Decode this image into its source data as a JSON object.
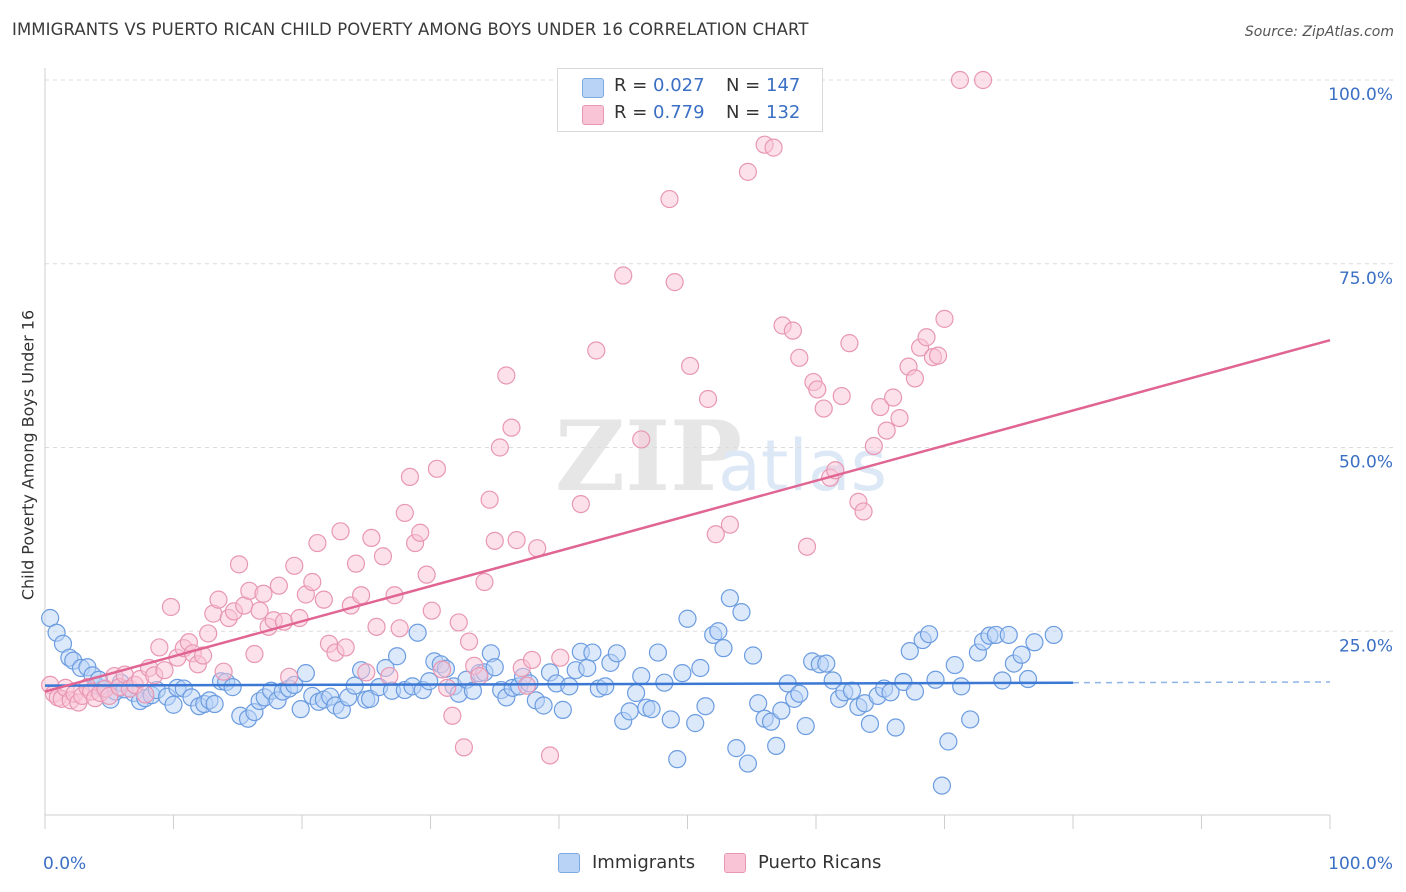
{
  "title": "IMMIGRANTS VS PUERTO RICAN CHILD POVERTY AMONG BOYS UNDER 16 CORRELATION CHART",
  "source": "Source: ZipAtlas.com",
  "watermark": {
    "zip": "ZIP",
    "atlas": "atlas"
  },
  "colors": {
    "blue": "#3a78d4",
    "blue_fill": "#b9d3f7",
    "pink": "#e06592",
    "pink_fill": "#f9c4d6",
    "tick_text": "#3a6fc4"
  },
  "stats": [
    {
      "r_label": "R = ",
      "r_value": "0.027",
      "n_label": "N = ",
      "n_value": "147"
    },
    {
      "r_label": "R = ",
      "r_value": "0.779",
      "n_label": "N = ",
      "n_value": "132"
    }
  ],
  "legend": [
    {
      "label": "Immigrants"
    },
    {
      "label": "Puerto Ricans"
    }
  ],
  "chart_data": {
    "type": "scatter",
    "ylabel": "Child Poverty Among Boys Under 16",
    "xlabel": "",
    "xlim": [
      0,
      100
    ],
    "ylim": [
      0,
      100
    ],
    "x_tick_labels": [
      "0.0%",
      "100.0%"
    ],
    "y_tick_labels": [
      "25.0%",
      "50.0%",
      "75.0%",
      "100.0%"
    ],
    "y_ticks": [
      25,
      50,
      75,
      100
    ],
    "grid": true,
    "legend_position": "bottom-center",
    "series": [
      {
        "name": "Immigrants",
        "trend": {
          "x": [
            0,
            80
          ],
          "y": [
            17.6,
            18.0
          ],
          "dashed_to": [
            100,
            18.1
          ]
        },
        "points": [
          [
            0.4,
            26.8
          ],
          [
            0.9,
            24.8
          ],
          [
            1.4,
            23.3
          ],
          [
            1.9,
            21.4
          ],
          [
            2.2,
            21.0
          ],
          [
            2.8,
            20.0
          ],
          [
            3.3,
            20.1
          ],
          [
            3.7,
            19.0
          ],
          [
            4.0,
            17.6
          ],
          [
            4.2,
            18.4
          ],
          [
            4.6,
            17.1
          ],
          [
            5.1,
            15.7
          ],
          [
            5.5,
            16.8
          ],
          [
            5.9,
            18.0
          ],
          [
            6.2,
            17.1
          ],
          [
            6.9,
            16.6
          ],
          [
            7.4,
            15.5
          ],
          [
            7.8,
            15.9
          ],
          [
            8.3,
            16.3
          ],
          [
            8.7,
            17.0
          ],
          [
            9.5,
            16.1
          ],
          [
            10.0,
            15.0
          ],
          [
            10.3,
            17.3
          ],
          [
            10.8,
            17.2
          ],
          [
            11.4,
            16.0
          ],
          [
            12.0,
            14.8
          ],
          [
            12.4,
            15.1
          ],
          [
            12.8,
            15.6
          ],
          [
            13.2,
            15.1
          ],
          [
            13.7,
            18.2
          ],
          [
            14.1,
            18.1
          ],
          [
            14.6,
            17.4
          ],
          [
            15.2,
            13.5
          ],
          [
            15.8,
            13.1
          ],
          [
            16.3,
            14.0
          ],
          [
            16.7,
            15.5
          ],
          [
            17.1,
            16.0
          ],
          [
            17.6,
            16.9
          ],
          [
            18.1,
            15.6
          ],
          [
            18.5,
            16.8
          ],
          [
            19.0,
            17.2
          ],
          [
            19.4,
            17.7
          ],
          [
            19.9,
            14.4
          ],
          [
            20.3,
            19.3
          ],
          [
            20.8,
            16.2
          ],
          [
            21.3,
            15.4
          ],
          [
            21.7,
            15.7
          ],
          [
            22.2,
            16.1
          ],
          [
            22.6,
            14.9
          ],
          [
            23.1,
            14.3
          ],
          [
            23.6,
            16.0
          ],
          [
            24.1,
            17.6
          ],
          [
            24.6,
            19.7
          ],
          [
            25.0,
            15.7
          ],
          [
            25.3,
            15.8
          ],
          [
            26.0,
            17.4
          ],
          [
            26.5,
            20.0
          ],
          [
            27.0,
            16.9
          ],
          [
            27.4,
            21.6
          ],
          [
            28.0,
            17.0
          ],
          [
            28.6,
            17.5
          ],
          [
            29.0,
            24.8
          ],
          [
            29.4,
            17.0
          ],
          [
            29.9,
            18.2
          ],
          [
            30.3,
            20.9
          ],
          [
            30.8,
            20.5
          ],
          [
            31.2,
            19.9
          ],
          [
            31.8,
            17.5
          ],
          [
            32.2,
            16.5
          ],
          [
            32.8,
            18.4
          ],
          [
            33.3,
            16.9
          ],
          [
            33.8,
            19.3
          ],
          [
            34.2,
            19.4
          ],
          [
            34.7,
            22.0
          ],
          [
            35.0,
            20.1
          ],
          [
            35.5,
            17.0
          ],
          [
            35.9,
            16.0
          ],
          [
            36.4,
            17.3
          ],
          [
            36.9,
            17.5
          ],
          [
            37.2,
            18.8
          ],
          [
            37.7,
            17.9
          ],
          [
            38.2,
            15.6
          ],
          [
            38.8,
            14.9
          ],
          [
            39.3,
            19.4
          ],
          [
            39.8,
            17.9
          ],
          [
            40.3,
            14.3
          ],
          [
            40.8,
            17.5
          ],
          [
            41.3,
            19.7
          ],
          [
            41.7,
            22.2
          ],
          [
            42.2,
            20.0
          ],
          [
            42.6,
            22.1
          ],
          [
            43.1,
            17.2
          ],
          [
            43.6,
            17.5
          ],
          [
            44.0,
            20.7
          ],
          [
            44.5,
            22.0
          ],
          [
            45.0,
            12.8
          ],
          [
            45.5,
            14.1
          ],
          [
            46.0,
            16.6
          ],
          [
            46.4,
            18.9
          ],
          [
            46.8,
            14.6
          ],
          [
            47.2,
            14.4
          ],
          [
            47.7,
            22.1
          ],
          [
            48.2,
            18.0
          ],
          [
            48.7,
            13.0
          ],
          [
            49.2,
            7.6
          ],
          [
            49.6,
            19.3
          ],
          [
            50.0,
            26.7
          ],
          [
            50.6,
            12.5
          ],
          [
            51.0,
            20.0
          ],
          [
            51.4,
            14.8
          ],
          [
            52.0,
            24.5
          ],
          [
            52.4,
            25.0
          ],
          [
            52.8,
            22.7
          ],
          [
            53.3,
            29.5
          ],
          [
            53.8,
            9.1
          ],
          [
            54.2,
            27.6
          ],
          [
            54.7,
            7.0
          ],
          [
            55.1,
            21.7
          ],
          [
            55.5,
            15.2
          ],
          [
            56.0,
            13.1
          ],
          [
            56.5,
            12.7
          ],
          [
            56.9,
            9.4
          ],
          [
            57.3,
            14.2
          ],
          [
            57.8,
            17.9
          ],
          [
            58.3,
            15.8
          ],
          [
            58.7,
            16.5
          ],
          [
            59.2,
            12.1
          ],
          [
            59.7,
            20.9
          ],
          [
            60.3,
            20.5
          ],
          [
            60.8,
            20.6
          ],
          [
            61.3,
            18.3
          ],
          [
            61.8,
            15.8
          ],
          [
            62.2,
            16.7
          ],
          [
            62.8,
            16.9
          ],
          [
            63.3,
            14.7
          ],
          [
            63.8,
            15.2
          ],
          [
            64.2,
            12.4
          ],
          [
            64.8,
            16.2
          ],
          [
            65.3,
            17.2
          ],
          [
            65.8,
            16.7
          ],
          [
            66.2,
            11.9
          ],
          [
            66.8,
            18.1
          ],
          [
            67.3,
            22.3
          ],
          [
            67.7,
            16.8
          ],
          [
            68.3,
            23.8
          ],
          [
            68.8,
            24.6
          ],
          [
            69.3,
            18.4
          ],
          [
            69.8,
            4.0
          ],
          [
            70.3,
            10.0
          ],
          [
            70.8,
            20.4
          ],
          [
            71.3,
            17.5
          ],
          [
            72.0,
            13.0
          ],
          [
            72.6,
            22.1
          ],
          [
            73.0,
            23.6
          ],
          [
            73.5,
            24.4
          ],
          [
            74.0,
            24.5
          ],
          [
            74.5,
            18.3
          ],
          [
            75.0,
            24.5
          ],
          [
            75.4,
            20.6
          ],
          [
            76.0,
            21.8
          ],
          [
            76.5,
            18.5
          ],
          [
            77.0,
            23.5
          ],
          [
            78.5,
            24.5
          ]
        ]
      },
      {
        "name": "Puerto Ricans",
        "trend": {
          "x": [
            0,
            100
          ],
          "y": [
            16.8,
            64.6
          ]
        },
        "points": [
          [
            0.4,
            17.7
          ],
          [
            0.7,
            16.5
          ],
          [
            1.0,
            16.0
          ],
          [
            1.3,
            15.8
          ],
          [
            1.6,
            17.3
          ],
          [
            2.0,
            15.6
          ],
          [
            2.3,
            16.5
          ],
          [
            2.6,
            15.3
          ],
          [
            2.9,
            16.2
          ],
          [
            3.3,
            17.4
          ],
          [
            3.6,
            16.8
          ],
          [
            3.9,
            15.9
          ],
          [
            4.3,
            16.6
          ],
          [
            4.7,
            17.2
          ],
          [
            5.0,
            16.2
          ],
          [
            5.4,
            18.9
          ],
          [
            5.8,
            17.4
          ],
          [
            6.2,
            19.1
          ],
          [
            6.6,
            17.2
          ],
          [
            7.0,
            17.7
          ],
          [
            7.4,
            18.5
          ],
          [
            7.8,
            16.4
          ],
          [
            8.1,
            20.0
          ],
          [
            8.5,
            19.0
          ],
          [
            8.9,
            22.8
          ],
          [
            9.3,
            19.7
          ],
          [
            9.8,
            28.3
          ],
          [
            10.3,
            21.4
          ],
          [
            10.8,
            22.7
          ],
          [
            11.2,
            23.5
          ],
          [
            11.5,
            22.0
          ],
          [
            11.9,
            20.5
          ],
          [
            12.3,
            21.7
          ],
          [
            12.7,
            24.7
          ],
          [
            13.1,
            27.4
          ],
          [
            13.5,
            29.3
          ],
          [
            13.9,
            19.5
          ],
          [
            14.3,
            26.8
          ],
          [
            14.7,
            27.7
          ],
          [
            15.1,
            34.1
          ],
          [
            15.5,
            28.5
          ],
          [
            15.9,
            30.5
          ],
          [
            16.3,
            21.9
          ],
          [
            16.7,
            27.8
          ],
          [
            17.0,
            30.1
          ],
          [
            17.4,
            25.6
          ],
          [
            17.8,
            26.5
          ],
          [
            18.2,
            31.2
          ],
          [
            18.6,
            26.3
          ],
          [
            19.0,
            18.8
          ],
          [
            19.4,
            33.9
          ],
          [
            19.8,
            26.8
          ],
          [
            20.3,
            30.0
          ],
          [
            20.8,
            31.7
          ],
          [
            21.2,
            37.0
          ],
          [
            21.7,
            29.3
          ],
          [
            22.1,
            23.3
          ],
          [
            22.6,
            22.1
          ],
          [
            23.0,
            38.6
          ],
          [
            23.4,
            22.8
          ],
          [
            23.8,
            28.5
          ],
          [
            24.2,
            34.2
          ],
          [
            24.6,
            29.9
          ],
          [
            25.0,
            19.4
          ],
          [
            25.4,
            37.7
          ],
          [
            25.8,
            25.6
          ],
          [
            26.3,
            35.2
          ],
          [
            26.8,
            18.9
          ],
          [
            27.2,
            29.9
          ],
          [
            27.6,
            25.4
          ],
          [
            28.0,
            41.1
          ],
          [
            28.4,
            46.0
          ],
          [
            28.8,
            37.0
          ],
          [
            29.2,
            38.4
          ],
          [
            29.7,
            32.7
          ],
          [
            30.1,
            27.8
          ],
          [
            30.5,
            47.1
          ],
          [
            30.9,
            19.8
          ],
          [
            31.3,
            17.3
          ],
          [
            31.7,
            13.5
          ],
          [
            32.2,
            26.2
          ],
          [
            32.6,
            9.2
          ],
          [
            33.0,
            23.6
          ],
          [
            33.4,
            20.3
          ],
          [
            33.8,
            18.9
          ],
          [
            34.2,
            31.7
          ],
          [
            34.6,
            42.9
          ],
          [
            35.0,
            37.3
          ],
          [
            35.4,
            50.0
          ],
          [
            35.9,
            59.8
          ],
          [
            36.3,
            52.7
          ],
          [
            36.7,
            37.4
          ],
          [
            37.1,
            20.0
          ],
          [
            37.5,
            17.6
          ],
          [
            37.9,
            21.1
          ],
          [
            38.3,
            36.3
          ],
          [
            39.3,
            8.1
          ],
          [
            40.1,
            21.4
          ],
          [
            41.7,
            42.3
          ],
          [
            42.9,
            63.2
          ],
          [
            45.0,
            73.4
          ],
          [
            46.4,
            51.1
          ],
          [
            48.6,
            83.8
          ],
          [
            49.0,
            72.5
          ],
          [
            50.2,
            61.1
          ],
          [
            51.6,
            56.6
          ],
          [
            52.2,
            38.2
          ],
          [
            53.3,
            39.5
          ],
          [
            54.7,
            87.5
          ],
          [
            56.0,
            91.2
          ],
          [
            56.7,
            90.8
          ],
          [
            57.4,
            66.6
          ],
          [
            58.2,
            65.9
          ],
          [
            58.7,
            62.2
          ],
          [
            59.3,
            36.5
          ],
          [
            59.8,
            58.9
          ],
          [
            60.1,
            57.9
          ],
          [
            60.6,
            55.3
          ],
          [
            61.1,
            45.9
          ],
          [
            61.5,
            46.9
          ],
          [
            62.0,
            57.0
          ],
          [
            62.6,
            64.2
          ],
          [
            63.3,
            42.6
          ],
          [
            63.7,
            41.3
          ],
          [
            64.5,
            50.2
          ],
          [
            65.0,
            55.5
          ],
          [
            65.5,
            52.3
          ],
          [
            66.0,
            56.8
          ],
          [
            66.5,
            54.0
          ],
          [
            67.2,
            61.0
          ],
          [
            67.7,
            59.4
          ],
          [
            68.1,
            63.6
          ],
          [
            68.6,
            65.0
          ],
          [
            69.1,
            62.3
          ],
          [
            69.5,
            62.5
          ],
          [
            70.0,
            67.5
          ],
          [
            71.2,
            100.0
          ],
          [
            73.0,
            100.0
          ]
        ]
      }
    ]
  }
}
